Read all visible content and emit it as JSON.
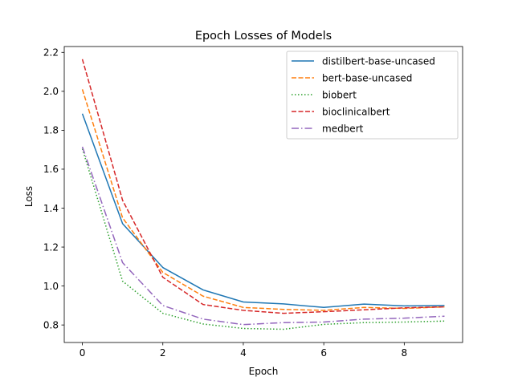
{
  "chart_data": {
    "type": "line",
    "title": "Epoch Losses of Models",
    "xlabel": "Epoch",
    "ylabel": "Loss",
    "xlim": [
      -0.45,
      9.45
    ],
    "ylim": [
      0.71,
      2.23
    ],
    "xticks": [
      0,
      2,
      4,
      6,
      8
    ],
    "yticks": [
      0.8,
      1.0,
      1.2,
      1.4,
      1.6,
      1.8,
      2.0,
      2.2
    ],
    "ytick_labels": [
      "0.8",
      "1.0",
      "1.2",
      "1.4",
      "1.6",
      "1.8",
      "2.0",
      "2.2"
    ],
    "grid": false,
    "legend_position": "top-right",
    "x": [
      0,
      1,
      2,
      3,
      4,
      5,
      6,
      7,
      8,
      9
    ],
    "series": [
      {
        "name": "distilbert-base-uncased",
        "color": "#1f77b4",
        "dash": "solid",
        "values": [
          1.885,
          1.32,
          1.095,
          0.98,
          0.918,
          0.908,
          0.89,
          0.907,
          0.898,
          0.9
        ]
      },
      {
        "name": "bert-base-uncased",
        "color": "#ff7f0e",
        "dash": "dashed",
        "values": [
          2.01,
          1.35,
          1.07,
          0.948,
          0.89,
          0.88,
          0.875,
          0.89,
          0.885,
          0.893
        ]
      },
      {
        "name": "biobert",
        "color": "#2ca02c",
        "dash": "dotted",
        "values": [
          1.705,
          1.025,
          0.86,
          0.805,
          0.782,
          0.778,
          0.803,
          0.812,
          0.815,
          0.82
        ]
      },
      {
        "name": "bioclinicalbert",
        "color": "#d62728",
        "dash": "dashed",
        "values": [
          2.165,
          1.44,
          1.045,
          0.905,
          0.875,
          0.86,
          0.868,
          0.878,
          0.888,
          0.893
        ]
      },
      {
        "name": "medbert",
        "color": "#9467bd",
        "dash": "dashdot",
        "values": [
          1.715,
          1.12,
          0.9,
          0.83,
          0.802,
          0.812,
          0.815,
          0.83,
          0.835,
          0.845
        ]
      }
    ]
  }
}
